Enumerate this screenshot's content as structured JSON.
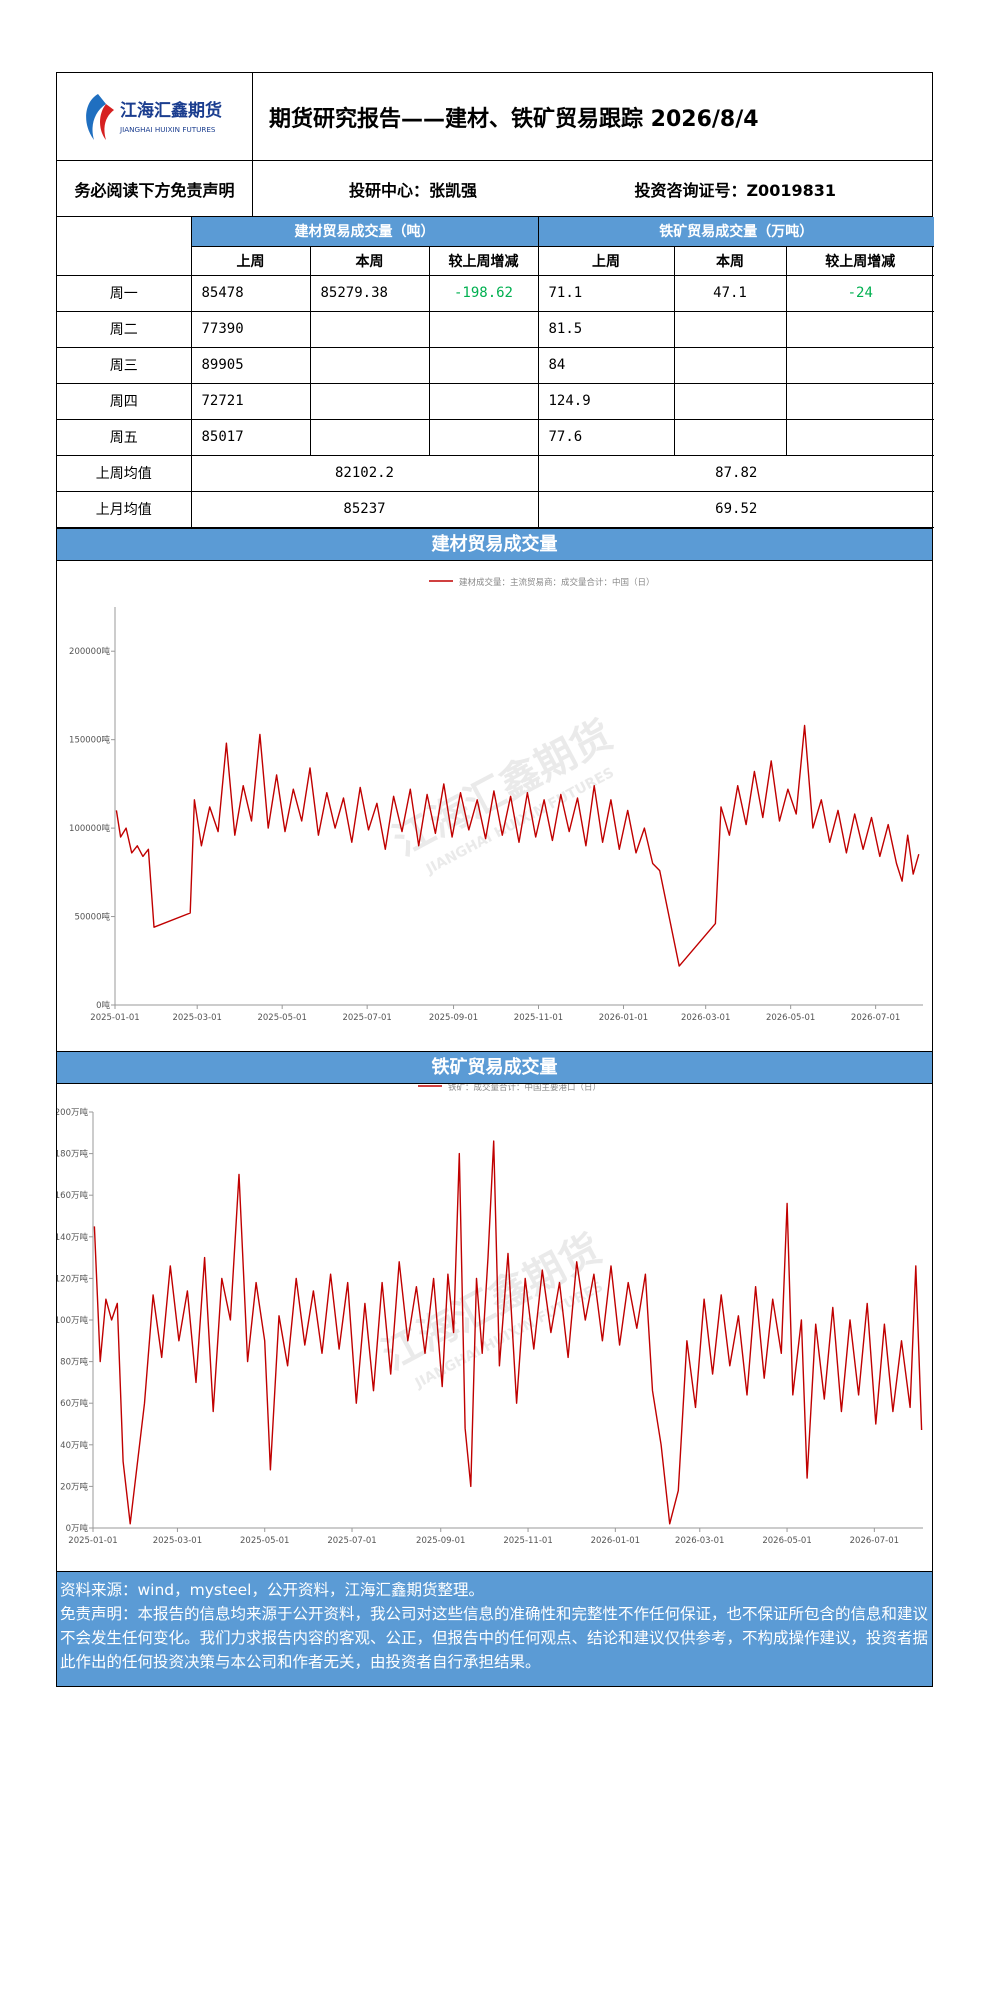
{
  "header": {
    "logo_cn": "江海汇鑫期货",
    "logo_en": "JIANGHAI HUIXIN FUTURES",
    "title": "期货研究报告——建材、铁矿贸易跟踪 2026/8/4"
  },
  "info": {
    "disclaimer_link": "务必阅读下方免责声明",
    "center": "投研中心：张凯强",
    "license": "投资咨询证号：Z0019831"
  },
  "table": {
    "group_jc": "建材贸易成交量（吨）",
    "group_tk": "铁矿贸易成交量（万吨）",
    "col_last": "上周",
    "col_this": "本周",
    "col_diff": "较上周增减",
    "rows": [
      {
        "label": "周一",
        "jc_last": "85478",
        "jc_this": "85279.38",
        "jc_diff": "-198.62",
        "tk_last": "71.1",
        "tk_this": "47.1",
        "tk_diff": "-24"
      },
      {
        "label": "周二",
        "jc_last": "77390",
        "jc_this": "",
        "jc_diff": "",
        "tk_last": "81.5",
        "tk_this": "",
        "tk_diff": ""
      },
      {
        "label": "周三",
        "jc_last": "89905",
        "jc_this": "",
        "jc_diff": "",
        "tk_last": "84",
        "tk_this": "",
        "tk_diff": ""
      },
      {
        "label": "周四",
        "jc_last": "72721",
        "jc_this": "",
        "jc_diff": "",
        "tk_last": "124.9",
        "tk_this": "",
        "tk_diff": ""
      },
      {
        "label": "周五",
        "jc_last": "85017",
        "jc_this": "",
        "jc_diff": "",
        "tk_last": "77.6",
        "tk_this": "",
        "tk_diff": ""
      }
    ],
    "avg_week_label": "上周均值",
    "avg_week_jc": "82102.2",
    "avg_week_tk": "87.82",
    "avg_month_label": "上月均值",
    "avg_month_jc": "85237",
    "avg_month_tk": "69.52"
  },
  "watermark": {
    "cn": "江海汇鑫期货",
    "en": "JIANGHAI HUIXIN FUTURES"
  },
  "chart_data": [
    {
      "type": "line",
      "band_title": "建材贸易成交量",
      "legend": "建材成交量：主流贸易商：成交量合计：中国（日）",
      "legend_position": "top",
      "color": "#c00000",
      "x_ticks": [
        "2025-01-01",
        "2025-03-01",
        "2025-05-01",
        "2025-07-01",
        "2025-09-01",
        "2025-11-01",
        "2026-01-01",
        "2026-03-01",
        "2026-05-01",
        "2026-07-01"
      ],
      "y_ticks": [
        "0吨",
        "50000吨",
        "100000吨",
        "150000吨",
        "200000吨"
      ],
      "ylim": [
        0,
        225000
      ],
      "xlim": [
        "2025-01-01",
        "2026-08-04"
      ],
      "points": [
        [
          "2025-01-02",
          110000
        ],
        [
          "2025-01-05",
          95000
        ],
        [
          "2025-01-09",
          100000
        ],
        [
          "2025-01-13",
          86000
        ],
        [
          "2025-01-17",
          90000
        ],
        [
          "2025-01-21",
          84000
        ],
        [
          "2025-01-25",
          88000
        ],
        [
          "2025-01-29",
          44000
        ],
        [
          "2025-02-24",
          52000
        ],
        [
          "2025-02-27",
          116000
        ],
        [
          "2025-03-04",
          90000
        ],
        [
          "2025-03-10",
          112000
        ],
        [
          "2025-03-16",
          98000
        ],
        [
          "2025-03-22",
          148000
        ],
        [
          "2025-03-28",
          96000
        ],
        [
          "2025-04-03",
          124000
        ],
        [
          "2025-04-09",
          104000
        ],
        [
          "2025-04-15",
          153000
        ],
        [
          "2025-04-21",
          100000
        ],
        [
          "2025-04-27",
          130000
        ],
        [
          "2025-05-03",
          98000
        ],
        [
          "2025-05-09",
          122000
        ],
        [
          "2025-05-15",
          104000
        ],
        [
          "2025-05-21",
          134000
        ],
        [
          "2025-05-27",
          96000
        ],
        [
          "2025-06-02",
          120000
        ],
        [
          "2025-06-08",
          100000
        ],
        [
          "2025-06-14",
          117000
        ],
        [
          "2025-06-20",
          92000
        ],
        [
          "2025-06-26",
          123000
        ],
        [
          "2025-07-02",
          99000
        ],
        [
          "2025-07-08",
          114000
        ],
        [
          "2025-07-14",
          88000
        ],
        [
          "2025-07-20",
          118000
        ],
        [
          "2025-07-26",
          98000
        ],
        [
          "2025-08-01",
          122000
        ],
        [
          "2025-08-07",
          90000
        ],
        [
          "2025-08-13",
          119000
        ],
        [
          "2025-08-19",
          97000
        ],
        [
          "2025-08-25",
          125000
        ],
        [
          "2025-08-31",
          95000
        ],
        [
          "2025-09-06",
          120000
        ],
        [
          "2025-09-12",
          99000
        ],
        [
          "2025-09-18",
          116000
        ],
        [
          "2025-09-24",
          94000
        ],
        [
          "2025-09-30",
          121000
        ],
        [
          "2025-10-06",
          96000
        ],
        [
          "2025-10-12",
          118000
        ],
        [
          "2025-10-18",
          92000
        ],
        [
          "2025-10-24",
          120000
        ],
        [
          "2025-10-30",
          95000
        ],
        [
          "2025-11-05",
          116000
        ],
        [
          "2025-11-11",
          93000
        ],
        [
          "2025-11-17",
          119000
        ],
        [
          "2025-11-23",
          98000
        ],
        [
          "2025-11-29",
          117000
        ],
        [
          "2025-12-05",
          90000
        ],
        [
          "2025-12-11",
          124000
        ],
        [
          "2025-12-17",
          92000
        ],
        [
          "2025-12-23",
          116000
        ],
        [
          "2025-12-29",
          88000
        ],
        [
          "2026-01-04",
          110000
        ],
        [
          "2026-01-10",
          86000
        ],
        [
          "2026-01-16",
          100000
        ],
        [
          "2026-01-22",
          80000
        ],
        [
          "2026-01-27",
          76000
        ],
        [
          "2026-02-10",
          22000
        ],
        [
          "2026-03-08",
          46000
        ],
        [
          "2026-03-12",
          112000
        ],
        [
          "2026-03-18",
          96000
        ],
        [
          "2026-03-24",
          124000
        ],
        [
          "2026-03-30",
          102000
        ],
        [
          "2026-04-05",
          132000
        ],
        [
          "2026-04-11",
          106000
        ],
        [
          "2026-04-17",
          138000
        ],
        [
          "2026-04-23",
          104000
        ],
        [
          "2026-04-29",
          122000
        ],
        [
          "2026-05-05",
          108000
        ],
        [
          "2026-05-11",
          158000
        ],
        [
          "2026-05-17",
          100000
        ],
        [
          "2026-05-23",
          116000
        ],
        [
          "2026-05-29",
          92000
        ],
        [
          "2026-06-04",
          110000
        ],
        [
          "2026-06-10",
          86000
        ],
        [
          "2026-06-16",
          108000
        ],
        [
          "2026-06-22",
          88000
        ],
        [
          "2026-06-28",
          106000
        ],
        [
          "2026-07-04",
          84000
        ],
        [
          "2026-07-10",
          102000
        ],
        [
          "2026-07-16",
          80000
        ],
        [
          "2026-07-20",
          70000
        ],
        [
          "2026-07-24",
          96000
        ],
        [
          "2026-07-28",
          74000
        ],
        [
          "2026-08-01",
          85279
        ]
      ]
    },
    {
      "type": "line",
      "band_title": "铁矿贸易成交量",
      "legend": "铁矿：成交量合计：中国主要港口（日）",
      "legend_position": "top",
      "color": "#c00000",
      "x_ticks": [
        "2025-01-01",
        "2025-03-01",
        "2025-05-01",
        "2025-07-01",
        "2025-09-01",
        "2025-11-01",
        "2026-01-01",
        "2026-03-01",
        "2026-05-01",
        "2026-07-01"
      ],
      "y_ticks": [
        "0万吨",
        "20万吨",
        "40万吨",
        "60万吨",
        "80万吨",
        "100万吨",
        "120万吨",
        "140万吨",
        "160万吨",
        "180万吨",
        "200万吨"
      ],
      "ylim": [
        0,
        200
      ],
      "xlim": [
        "2025-01-01",
        "2026-08-04"
      ],
      "points": [
        [
          "2025-01-02",
          145
        ],
        [
          "2025-01-06",
          80
        ],
        [
          "2025-01-10",
          110
        ],
        [
          "2025-01-14",
          100
        ],
        [
          "2025-01-18",
          108
        ],
        [
          "2025-01-22",
          32
        ],
        [
          "2025-01-27",
          2
        ],
        [
          "2025-02-06",
          60
        ],
        [
          "2025-02-12",
          112
        ],
        [
          "2025-02-18",
          82
        ],
        [
          "2025-02-24",
          126
        ],
        [
          "2025-03-02",
          90
        ],
        [
          "2025-03-08",
          114
        ],
        [
          "2025-03-14",
          70
        ],
        [
          "2025-03-20",
          130
        ],
        [
          "2025-03-26",
          56
        ],
        [
          "2025-04-01",
          120
        ],
        [
          "2025-04-07",
          100
        ],
        [
          "2025-04-13",
          170
        ],
        [
          "2025-04-19",
          80
        ],
        [
          "2025-04-25",
          118
        ],
        [
          "2025-05-01",
          90
        ],
        [
          "2025-05-05",
          28
        ],
        [
          "2025-05-11",
          102
        ],
        [
          "2025-05-17",
          78
        ],
        [
          "2025-05-23",
          120
        ],
        [
          "2025-05-29",
          88
        ],
        [
          "2025-06-04",
          114
        ],
        [
          "2025-06-10",
          84
        ],
        [
          "2025-06-16",
          122
        ],
        [
          "2025-06-22",
          86
        ],
        [
          "2025-06-28",
          118
        ],
        [
          "2025-07-04",
          60
        ],
        [
          "2025-07-10",
          108
        ],
        [
          "2025-07-16",
          66
        ],
        [
          "2025-07-22",
          118
        ],
        [
          "2025-07-28",
          74
        ],
        [
          "2025-08-03",
          128
        ],
        [
          "2025-08-09",
          90
        ],
        [
          "2025-08-15",
          116
        ],
        [
          "2025-08-21",
          84
        ],
        [
          "2025-08-27",
          120
        ],
        [
          "2025-09-02",
          68
        ],
        [
          "2025-09-06",
          122
        ],
        [
          "2025-09-10",
          94
        ],
        [
          "2025-09-14",
          180
        ],
        [
          "2025-09-18",
          48
        ],
        [
          "2025-09-22",
          20
        ],
        [
          "2025-09-26",
          120
        ],
        [
          "2025-09-30",
          84
        ],
        [
          "2025-10-04",
          130
        ],
        [
          "2025-10-08",
          186
        ],
        [
          "2025-10-12",
          78
        ],
        [
          "2025-10-18",
          132
        ],
        [
          "2025-10-24",
          60
        ],
        [
          "2025-10-30",
          120
        ],
        [
          "2025-11-05",
          86
        ],
        [
          "2025-11-11",
          124
        ],
        [
          "2025-11-17",
          94
        ],
        [
          "2025-11-23",
          118
        ],
        [
          "2025-11-29",
          82
        ],
        [
          "2025-12-05",
          128
        ],
        [
          "2025-12-11",
          100
        ],
        [
          "2025-12-17",
          122
        ],
        [
          "2025-12-23",
          90
        ],
        [
          "2025-12-29",
          126
        ],
        [
          "2026-01-04",
          88
        ],
        [
          "2026-01-10",
          118
        ],
        [
          "2026-01-16",
          96
        ],
        [
          "2026-01-22",
          122
        ],
        [
          "2026-01-27",
          66
        ],
        [
          "2026-02-02",
          40
        ],
        [
          "2026-02-08",
          2
        ],
        [
          "2026-02-14",
          18
        ],
        [
          "2026-02-20",
          90
        ],
        [
          "2026-02-26",
          58
        ],
        [
          "2026-03-04",
          110
        ],
        [
          "2026-03-10",
          74
        ],
        [
          "2026-03-16",
          112
        ],
        [
          "2026-03-22",
          78
        ],
        [
          "2026-03-28",
          102
        ],
        [
          "2026-04-03",
          64
        ],
        [
          "2026-04-09",
          116
        ],
        [
          "2026-04-15",
          72
        ],
        [
          "2026-04-21",
          110
        ],
        [
          "2026-04-27",
          84
        ],
        [
          "2026-05-01",
          156
        ],
        [
          "2026-05-05",
          64
        ],
        [
          "2026-05-11",
          100
        ],
        [
          "2026-05-15",
          24
        ],
        [
          "2026-05-21",
          98
        ],
        [
          "2026-05-27",
          62
        ],
        [
          "2026-06-02",
          106
        ],
        [
          "2026-06-08",
          56
        ],
        [
          "2026-06-14",
          100
        ],
        [
          "2026-06-20",
          64
        ],
        [
          "2026-06-26",
          108
        ],
        [
          "2026-07-02",
          50
        ],
        [
          "2026-07-08",
          98
        ],
        [
          "2026-07-14",
          56
        ],
        [
          "2026-07-20",
          90
        ],
        [
          "2026-07-26",
          58
        ],
        [
          "2026-07-30",
          126
        ],
        [
          "2026-08-03",
          47.1
        ]
      ]
    }
  ],
  "footer": {
    "source": "资料来源：wind，mysteel，公开资料，江海汇鑫期货整理。",
    "disclaimer": "免责声明：本报告的信息均来源于公开资料，我公司对这些信息的准确性和完整性不作任何保证，也不保证所包含的信息和建议不会发生任何变化。我们力求报告内容的客观、公正，但报告中的任何观点、结论和建议仅供参考，不构成操作建议，投资者据此作出的任何投资决策与本公司和作者无关，由投资者自行承担结果。"
  }
}
